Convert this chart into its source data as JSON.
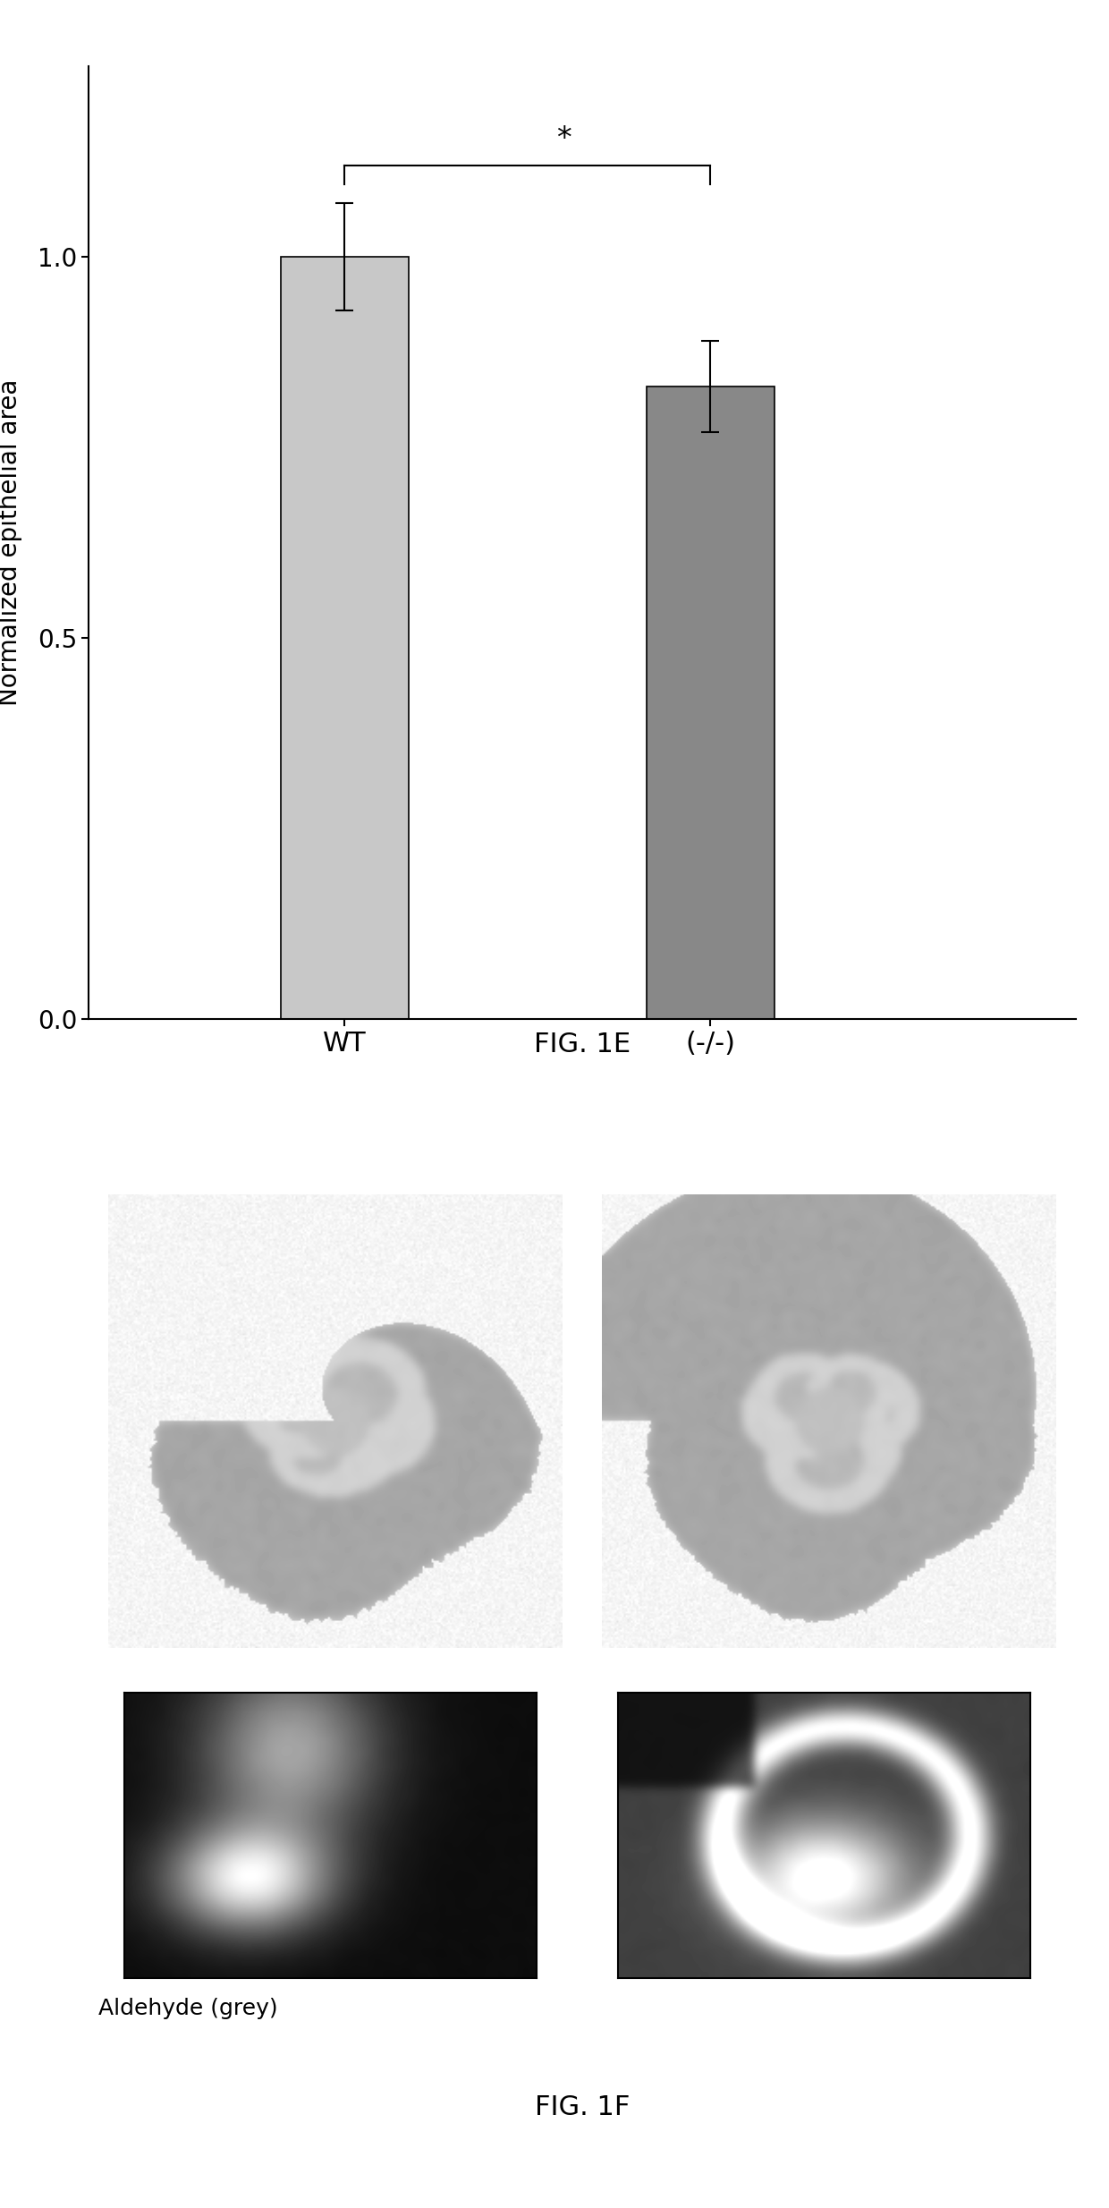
{
  "bar_categories": [
    "WT",
    "(-/-)"
  ],
  "bar_values": [
    1.0,
    0.83
  ],
  "bar_errors": [
    0.07,
    0.06
  ],
  "bar_colors": [
    "#c8c8c8",
    "#888888"
  ],
  "ylabel": "Normalized epithelial area",
  "yticks": [
    0.0,
    0.5,
    1.0
  ],
  "ylim": [
    0.0,
    1.25
  ],
  "fig1e_label": "FIG. 1E",
  "fig1f_label": "FIG. 1F",
  "photo_label": "Aldehyde (grey)",
  "sig_text": "*",
  "bar_width": 0.35,
  "x_positions": [
    1,
    2
  ],
  "xlim": [
    0.3,
    3.0
  ],
  "fig_width": 12.4,
  "fig_height": 24.68,
  "background_color": "#ffffff"
}
